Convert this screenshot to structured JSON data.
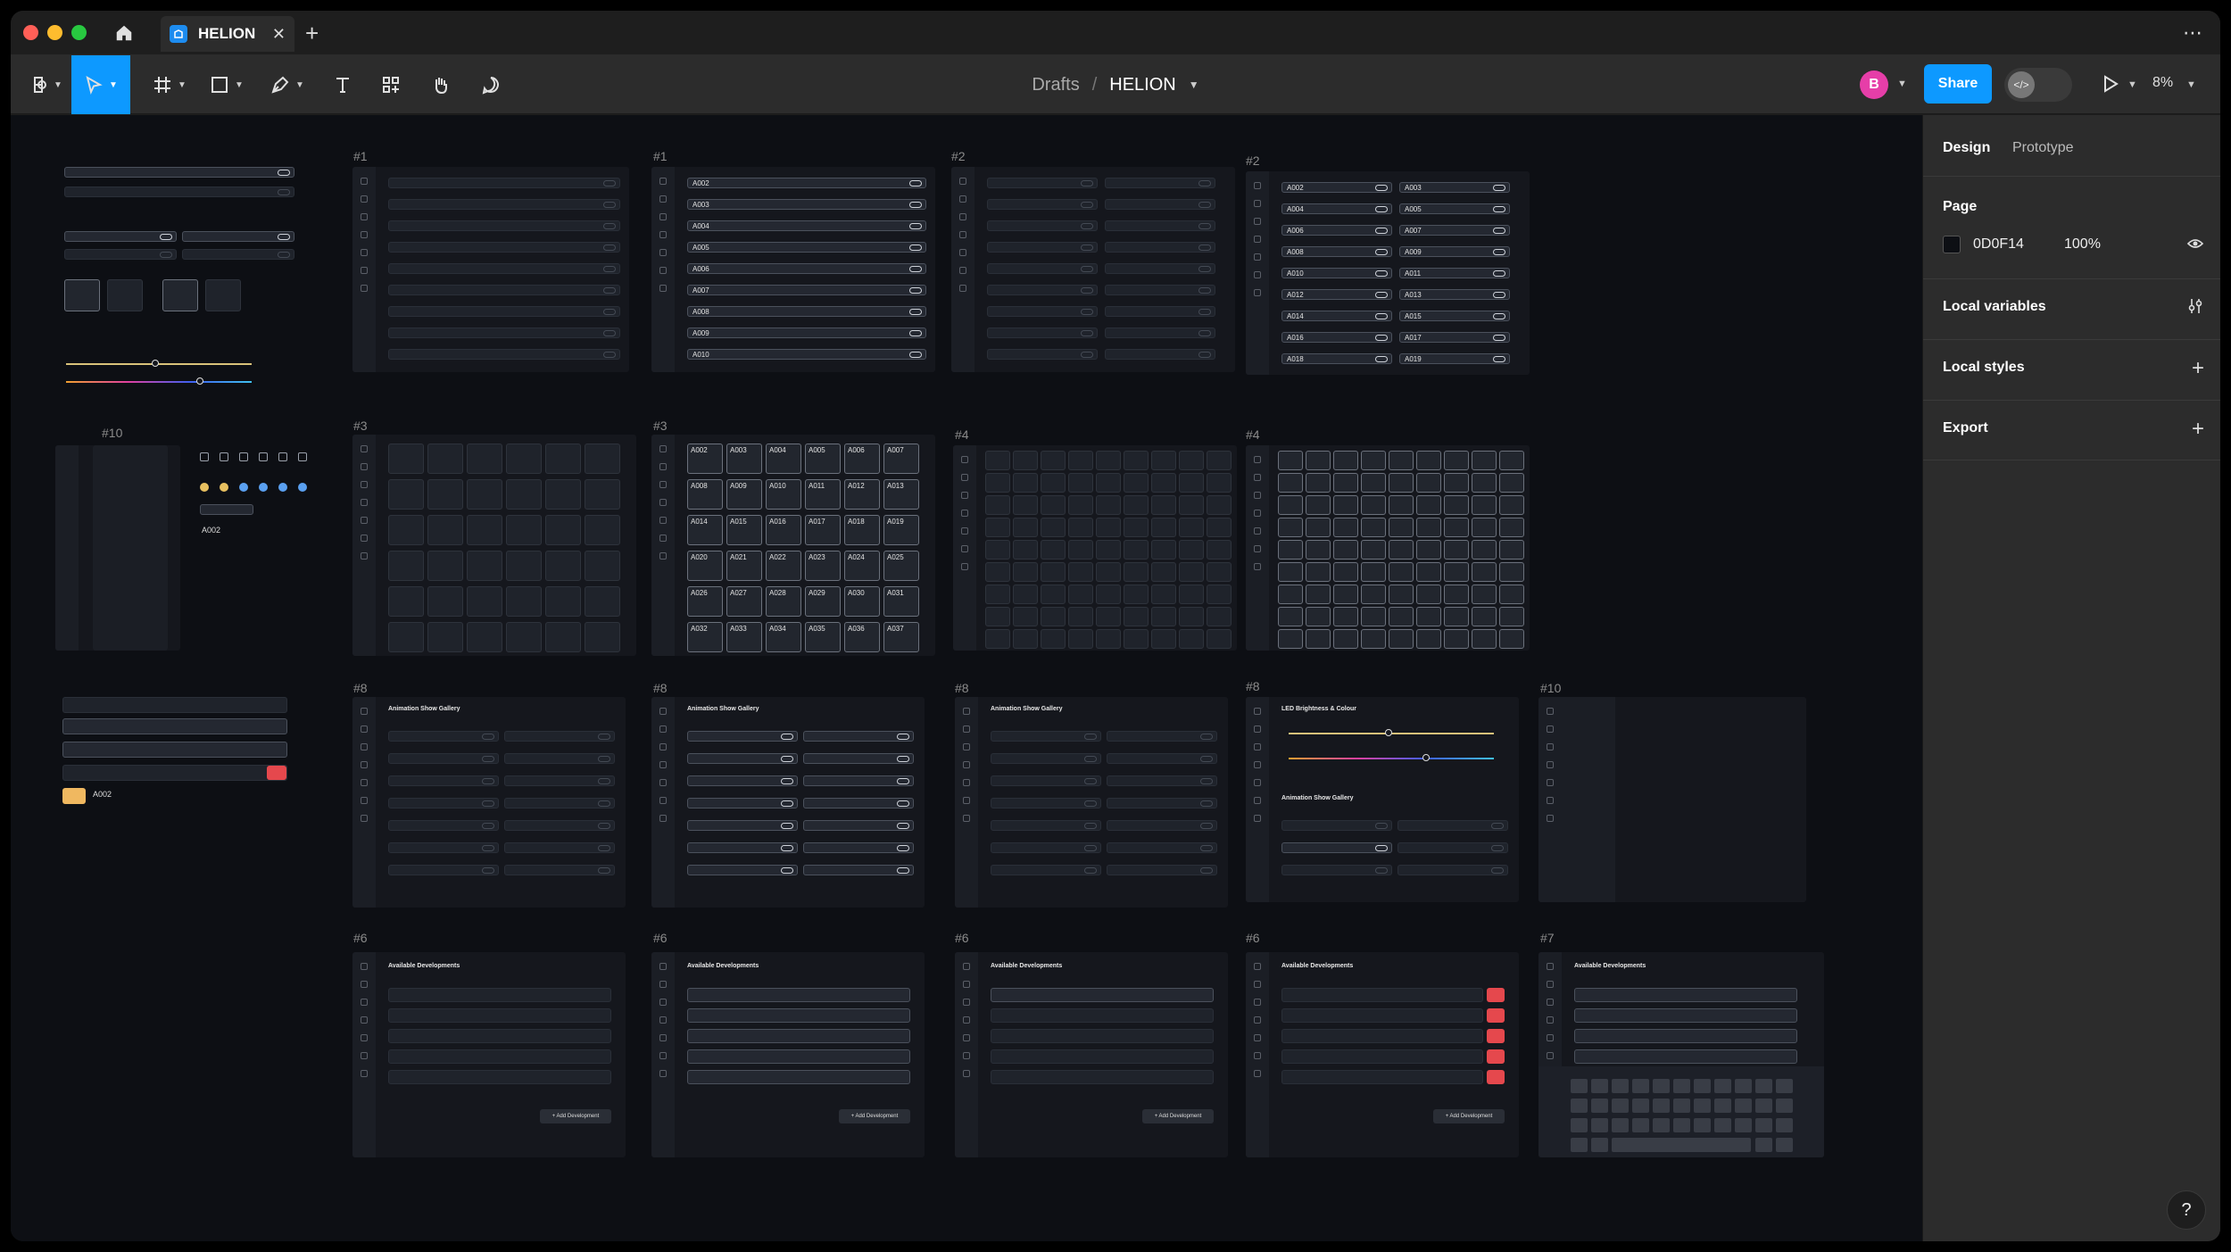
{
  "titlebar": {
    "tab_label": "HELION",
    "tab_close": "✕",
    "new_tab": "+",
    "more": "⋯"
  },
  "toolbar": {
    "breadcrumb_drafts": "Drafts",
    "breadcrumb_sep": "/",
    "breadcrumb_file": "HELION",
    "avatar_initial": "B",
    "share_label": "Share",
    "zoom_label": "8%"
  },
  "panel": {
    "tab_design": "Design",
    "tab_prototype": "Prototype",
    "page_title": "Page",
    "page_color_hex": "0D0F14",
    "page_opacity": "100%",
    "local_variables": "Local variables",
    "local_styles": "Local styles",
    "export": "Export"
  },
  "help_label": "?",
  "canvas": {
    "bg_color": "#0d0f14",
    "frame_labels": {
      "r1c1": "#1",
      "r1c2": "#1",
      "r1c3": "#2",
      "r1c4": "#2",
      "r2a": "#10",
      "r2c1": "#3",
      "r2c2": "#3",
      "r2c3": "#4",
      "r2c4": "#4",
      "r3c1": "#8",
      "r3c2": "#8",
      "r3c3": "#8",
      "r3c4": "#8",
      "r3c5": "#10",
      "r4c1": "#6",
      "r4c2": "#6",
      "r4c3": "#6",
      "r4c4": "#6",
      "r4c5": "#7"
    },
    "gallery_title": "Animation Show Gallery",
    "led_title": "LED Brightness & Colour",
    "dev_title": "Available Developments",
    "add_dev": "+ Add Development",
    "sample_tile": "A002",
    "list1_rows": [
      "A002",
      "A003",
      "A004",
      "A005",
      "A006",
      "A007",
      "A008",
      "A009",
      "A010"
    ],
    "list2_left": [
      "A002",
      "A004",
      "A006",
      "A008",
      "A010",
      "A012",
      "A014",
      "A016",
      "A018"
    ],
    "list2_right": [
      "A003",
      "A005",
      "A007",
      "A009",
      "A011",
      "A013",
      "A015",
      "A017",
      "A019"
    ],
    "grid3": [
      "A002",
      "A003",
      "A004",
      "A005",
      "A006",
      "A007",
      "A008",
      "A009",
      "A010",
      "A011",
      "A012",
      "A013",
      "A014",
      "A015",
      "A016",
      "A017",
      "A018",
      "A019",
      "A020",
      "A021",
      "A022",
      "A023",
      "A024",
      "A025",
      "A026",
      "A027",
      "A028",
      "A029",
      "A030",
      "A031",
      "A032",
      "A033",
      "A034",
      "A035",
      "A036",
      "A037"
    ]
  },
  "colors": {
    "accent": "#0d99ff",
    "danger": "#e5484d",
    "avatar": "#e63ea8"
  }
}
